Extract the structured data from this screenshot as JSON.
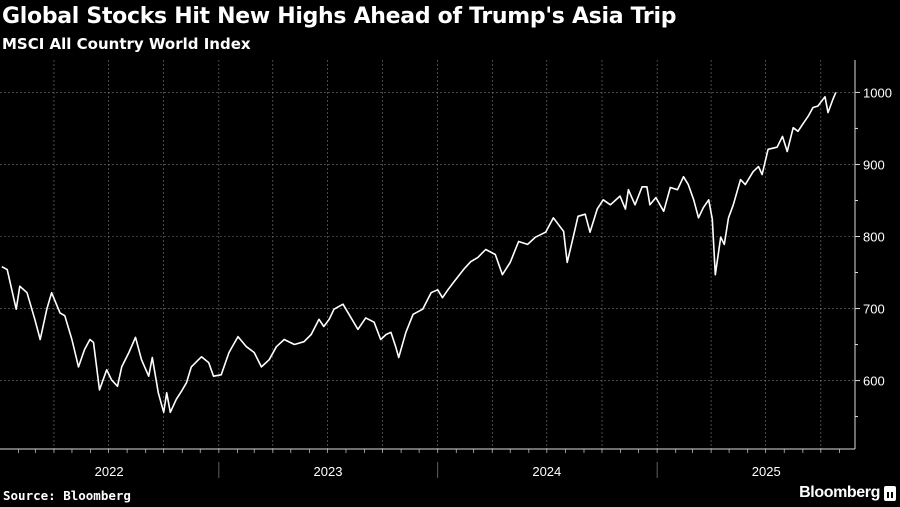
{
  "chart_data": {
    "type": "line",
    "title": "Global Stocks Hit New Highs Ahead of Trump's Asia Trip",
    "subtitle": "MSCI All Country World Index",
    "source": "Source: Bloomberg",
    "brand": "Bloomberg",
    "xlabel": "",
    "ylabel": "",
    "xlim": [
      "2022-01-01",
      "2025-11-27"
    ],
    "ylim": [
      505,
      1045
    ],
    "y_ticks": [
      600,
      700,
      800,
      900,
      1000
    ],
    "x_tick_labels": [
      {
        "label": "2022",
        "date": "2022-07-02"
      },
      {
        "label": "2023",
        "date": "2023-07-02"
      },
      {
        "label": "2024",
        "date": "2024-07-01"
      },
      {
        "label": "2025",
        "date": "2025-07-02"
      }
    ],
    "year_boundaries": [
      "2023-01-01",
      "2024-01-01",
      "2025-01-01"
    ],
    "grid": true,
    "y_axis_position": "right",
    "line_color": "#ffffff",
    "background": "#000000",
    "series": [
      {
        "x": [
          "2022-01-04",
          "2022-01-13",
          "2022-01-28",
          "2022-02-03",
          "2022-02-15",
          "2022-02-28",
          "2022-03-09",
          "2022-03-20",
          "2022-03-28",
          "2022-04-11",
          "2022-04-19",
          "2022-05-01",
          "2022-05-12",
          "2022-05-22",
          "2022-05-31",
          "2022-06-06",
          "2022-06-16",
          "2022-06-28",
          "2022-07-06",
          "2022-07-16",
          "2022-07-23",
          "2022-08-04",
          "2022-08-15",
          "2022-08-25",
          "2022-09-06",
          "2022-09-12",
          "2022-09-22",
          "2022-10-01",
          "2022-10-06",
          "2022-10-12",
          "2022-10-22",
          "2022-11-01",
          "2022-11-08",
          "2022-11-16",
          "2022-11-28",
          "2022-12-03",
          "2022-12-15",
          "2022-12-23",
          "2023-01-05",
          "2023-01-18",
          "2023-02-02",
          "2023-02-16",
          "2023-03-01",
          "2023-03-13",
          "2023-03-26",
          "2023-04-07",
          "2023-04-20",
          "2023-05-07",
          "2023-05-23",
          "2023-06-04",
          "2023-06-17",
          "2023-06-25",
          "2023-07-04",
          "2023-07-12",
          "2023-07-27",
          "2023-08-06",
          "2023-08-21",
          "2023-09-03",
          "2023-09-17",
          "2023-09-28",
          "2023-10-07",
          "2023-10-15",
          "2023-10-23",
          "2023-10-28",
          "2023-11-09",
          "2023-11-21",
          "2023-12-07",
          "2023-12-21",
          "2024-01-01",
          "2024-01-09",
          "2024-01-18",
          "2024-01-28",
          "2024-02-13",
          "2024-02-25",
          "2024-03-08",
          "2024-03-21",
          "2024-04-06",
          "2024-04-18",
          "2024-05-01",
          "2024-05-15",
          "2024-05-30",
          "2024-06-12",
          "2024-06-29",
          "2024-07-12",
          "2024-07-20",
          "2024-07-29",
          "2024-08-04",
          "2024-08-14",
          "2024-08-22",
          "2024-09-03",
          "2024-09-11",
          "2024-09-23",
          "2024-10-03",
          "2024-10-15",
          "2024-10-31",
          "2024-11-09",
          "2024-11-14",
          "2024-11-25",
          "2024-12-07",
          "2024-12-15",
          "2024-12-20",
          "2024-12-30",
          "2025-01-12",
          "2025-01-23",
          "2025-02-04",
          "2025-02-14",
          "2025-02-22",
          "2025-03-03",
          "2025-03-11",
          "2025-03-19",
          "2025-03-28",
          "2025-04-03",
          "2025-04-08",
          "2025-04-17",
          "2025-04-23",
          "2025-04-30",
          "2025-05-08",
          "2025-05-20",
          "2025-05-28",
          "2025-06-10",
          "2025-06-19",
          "2025-06-25",
          "2025-07-05",
          "2025-07-20",
          "2025-07-29",
          "2025-08-06",
          "2025-08-16",
          "2025-08-24",
          "2025-09-01",
          "2025-09-10",
          "2025-09-18",
          "2025-09-26",
          "2025-10-08",
          "2025-10-13",
          "2025-10-21",
          "2025-10-26"
        ],
        "y": [
          758,
          754,
          699,
          731,
          722,
          685,
          657,
          699,
          722,
          694,
          690,
          657,
          619,
          643,
          657,
          653,
          587,
          615,
          601,
          592,
          619,
          639,
          660,
          629,
          606,
          632,
          583,
          556,
          583,
          556,
          574,
          587,
          597,
          619,
          629,
          633,
          625,
          606,
          608,
          639,
          661,
          647,
          639,
          619,
          629,
          647,
          657,
          650,
          654,
          664,
          685,
          675,
          685,
          699,
          706,
          692,
          671,
          687,
          681,
          657,
          664,
          667,
          647,
          632,
          667,
          692,
          699,
          722,
          726,
          715,
          726,
          737,
          754,
          765,
          771,
          782,
          775,
          747,
          764,
          793,
          789,
          799,
          806,
          826,
          817,
          807,
          764,
          799,
          828,
          831,
          806,
          838,
          851,
          844,
          856,
          838,
          865,
          844,
          869,
          869,
          844,
          854,
          835,
          868,
          865,
          883,
          872,
          851,
          826,
          840,
          851,
          824,
          747,
          799,
          789,
          826,
          844,
          879,
          872,
          890,
          897,
          886,
          921,
          924,
          939,
          918,
          951,
          946,
          956,
          967,
          979,
          981,
          994,
          972,
          990,
          1000
        ]
      }
    ]
  }
}
